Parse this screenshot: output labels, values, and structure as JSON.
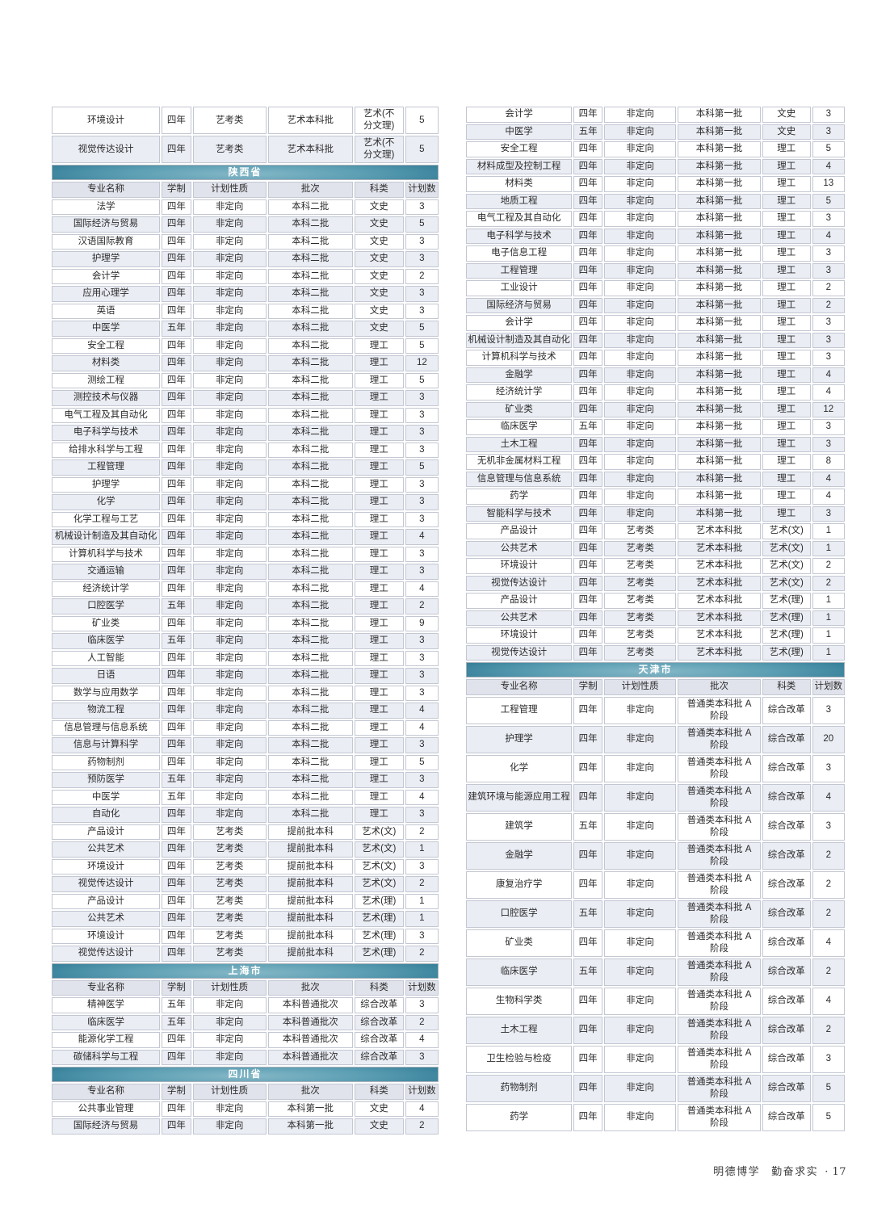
{
  "page": {
    "footer": {
      "motto_left": "明德博学",
      "motto_right": "勤奋求实",
      "page_number": "· 17"
    }
  },
  "colors": {
    "band_dark": "#216e8a",
    "band_mid": "#5a9db2",
    "band_light": "#85b8c7",
    "band_text": "#ffffff",
    "stripe_row": "#eaedf4",
    "header_row": "#e0e3eb",
    "cell_border": "#c3c7d2",
    "text": "#2b2b2b"
  },
  "table_headers": [
    "专业名称",
    "学制",
    "计划性质",
    "批次",
    "科类",
    "计划数"
  ],
  "columns": {
    "left": [
      {
        "section": null,
        "with_header": false,
        "rows": [
          [
            "环境设计",
            "四年",
            "艺考类",
            "艺术本科批",
            "艺术(不\n分文理)",
            "5"
          ],
          [
            "视觉传达设计",
            "四年",
            "艺考类",
            "艺术本科批",
            "艺术(不\n分文理)",
            "5"
          ]
        ]
      },
      {
        "section": "陕西省",
        "with_header": true,
        "rows": [
          [
            "法学",
            "四年",
            "非定向",
            "本科二批",
            "文史",
            "3"
          ],
          [
            "国际经济与贸易",
            "四年",
            "非定向",
            "本科二批",
            "文史",
            "5"
          ],
          [
            "汉语国际教育",
            "四年",
            "非定向",
            "本科二批",
            "文史",
            "3"
          ],
          [
            "护理学",
            "四年",
            "非定向",
            "本科二批",
            "文史",
            "3"
          ],
          [
            "会计学",
            "四年",
            "非定向",
            "本科二批",
            "文史",
            "2"
          ],
          [
            "应用心理学",
            "四年",
            "非定向",
            "本科二批",
            "文史",
            "3"
          ],
          [
            "英语",
            "四年",
            "非定向",
            "本科二批",
            "文史",
            "3"
          ],
          [
            "中医学",
            "五年",
            "非定向",
            "本科二批",
            "文史",
            "5"
          ],
          [
            "安全工程",
            "四年",
            "非定向",
            "本科二批",
            "理工",
            "5"
          ],
          [
            "材料类",
            "四年",
            "非定向",
            "本科二批",
            "理工",
            "12"
          ],
          [
            "测绘工程",
            "四年",
            "非定向",
            "本科二批",
            "理工",
            "5"
          ],
          [
            "测控技术与仪器",
            "四年",
            "非定向",
            "本科二批",
            "理工",
            "3"
          ],
          [
            "电气工程及其自动化",
            "四年",
            "非定向",
            "本科二批",
            "理工",
            "3"
          ],
          [
            "电子科学与技术",
            "四年",
            "非定向",
            "本科二批",
            "理工",
            "3"
          ],
          [
            "给排水科学与工程",
            "四年",
            "非定向",
            "本科二批",
            "理工",
            "3"
          ],
          [
            "工程管理",
            "四年",
            "非定向",
            "本科二批",
            "理工",
            "5"
          ],
          [
            "护理学",
            "四年",
            "非定向",
            "本科二批",
            "理工",
            "3"
          ],
          [
            "化学",
            "四年",
            "非定向",
            "本科二批",
            "理工",
            "3"
          ],
          [
            "化学工程与工艺",
            "四年",
            "非定向",
            "本科二批",
            "理工",
            "3"
          ],
          [
            "机械设计制造及其自动化",
            "四年",
            "非定向",
            "本科二批",
            "理工",
            "4"
          ],
          [
            "计算机科学与技术",
            "四年",
            "非定向",
            "本科二批",
            "理工",
            "3"
          ],
          [
            "交通运输",
            "四年",
            "非定向",
            "本科二批",
            "理工",
            "3"
          ],
          [
            "经济统计学",
            "四年",
            "非定向",
            "本科二批",
            "理工",
            "4"
          ],
          [
            "口腔医学",
            "五年",
            "非定向",
            "本科二批",
            "理工",
            "2"
          ],
          [
            "矿业类",
            "四年",
            "非定向",
            "本科二批",
            "理工",
            "9"
          ],
          [
            "临床医学",
            "五年",
            "非定向",
            "本科二批",
            "理工",
            "3"
          ],
          [
            "人工智能",
            "四年",
            "非定向",
            "本科二批",
            "理工",
            "3"
          ],
          [
            "日语",
            "四年",
            "非定向",
            "本科二批",
            "理工",
            "3"
          ],
          [
            "数学与应用数学",
            "四年",
            "非定向",
            "本科二批",
            "理工",
            "3"
          ],
          [
            "物流工程",
            "四年",
            "非定向",
            "本科二批",
            "理工",
            "4"
          ],
          [
            "信息管理与信息系统",
            "四年",
            "非定向",
            "本科二批",
            "理工",
            "4"
          ],
          [
            "信息与计算科学",
            "四年",
            "非定向",
            "本科二批",
            "理工",
            "3"
          ],
          [
            "药物制剂",
            "四年",
            "非定向",
            "本科二批",
            "理工",
            "5"
          ],
          [
            "预防医学",
            "五年",
            "非定向",
            "本科二批",
            "理工",
            "3"
          ],
          [
            "中医学",
            "五年",
            "非定向",
            "本科二批",
            "理工",
            "4"
          ],
          [
            "自动化",
            "四年",
            "非定向",
            "本科二批",
            "理工",
            "3"
          ],
          [
            "产品设计",
            "四年",
            "艺考类",
            "提前批本科",
            "艺术(文)",
            "2"
          ],
          [
            "公共艺术",
            "四年",
            "艺考类",
            "提前批本科",
            "艺术(文)",
            "1"
          ],
          [
            "环境设计",
            "四年",
            "艺考类",
            "提前批本科",
            "艺术(文)",
            "3"
          ],
          [
            "视觉传达设计",
            "四年",
            "艺考类",
            "提前批本科",
            "艺术(文)",
            "2"
          ],
          [
            "产品设计",
            "四年",
            "艺考类",
            "提前批本科",
            "艺术(理)",
            "1"
          ],
          [
            "公共艺术",
            "四年",
            "艺考类",
            "提前批本科",
            "艺术(理)",
            "1"
          ],
          [
            "环境设计",
            "四年",
            "艺考类",
            "提前批本科",
            "艺术(理)",
            "3"
          ],
          [
            "视觉传达设计",
            "四年",
            "艺考类",
            "提前批本科",
            "艺术(理)",
            "2"
          ]
        ]
      },
      {
        "section": "上海市",
        "with_header": true,
        "rows": [
          [
            "精神医学",
            "五年",
            "非定向",
            "本科普通批次",
            "综合改革",
            "3"
          ],
          [
            "临床医学",
            "五年",
            "非定向",
            "本科普通批次",
            "综合改革",
            "2"
          ],
          [
            "能源化学工程",
            "四年",
            "非定向",
            "本科普通批次",
            "综合改革",
            "4"
          ],
          [
            "碳储科学与工程",
            "四年",
            "非定向",
            "本科普通批次",
            "综合改革",
            "3"
          ]
        ]
      },
      {
        "section": "四川省",
        "with_header": true,
        "rows": [
          [
            "公共事业管理",
            "四年",
            "非定向",
            "本科第一批",
            "文史",
            "4"
          ],
          [
            "国际经济与贸易",
            "四年",
            "非定向",
            "本科第一批",
            "文史",
            "2"
          ]
        ]
      }
    ],
    "right": [
      {
        "section": null,
        "with_header": false,
        "rows": [
          [
            "会计学",
            "四年",
            "非定向",
            "本科第一批",
            "文史",
            "3"
          ],
          [
            "中医学",
            "五年",
            "非定向",
            "本科第一批",
            "文史",
            "3"
          ],
          [
            "安全工程",
            "四年",
            "非定向",
            "本科第一批",
            "理工",
            "5"
          ],
          [
            "材料成型及控制工程",
            "四年",
            "非定向",
            "本科第一批",
            "理工",
            "4"
          ],
          [
            "材料类",
            "四年",
            "非定向",
            "本科第一批",
            "理工",
            "13"
          ],
          [
            "地质工程",
            "四年",
            "非定向",
            "本科第一批",
            "理工",
            "5"
          ],
          [
            "电气工程及其自动化",
            "四年",
            "非定向",
            "本科第一批",
            "理工",
            "3"
          ],
          [
            "电子科学与技术",
            "四年",
            "非定向",
            "本科第一批",
            "理工",
            "4"
          ],
          [
            "电子信息工程",
            "四年",
            "非定向",
            "本科第一批",
            "理工",
            "3"
          ],
          [
            "工程管理",
            "四年",
            "非定向",
            "本科第一批",
            "理工",
            "3"
          ],
          [
            "工业设计",
            "四年",
            "非定向",
            "本科第一批",
            "理工",
            "2"
          ],
          [
            "国际经济与贸易",
            "四年",
            "非定向",
            "本科第一批",
            "理工",
            "2"
          ],
          [
            "会计学",
            "四年",
            "非定向",
            "本科第一批",
            "理工",
            "3"
          ],
          [
            "机械设计制造及其自动化",
            "四年",
            "非定向",
            "本科第一批",
            "理工",
            "3"
          ],
          [
            "计算机科学与技术",
            "四年",
            "非定向",
            "本科第一批",
            "理工",
            "3"
          ],
          [
            "金融学",
            "四年",
            "非定向",
            "本科第一批",
            "理工",
            "4"
          ],
          [
            "经济统计学",
            "四年",
            "非定向",
            "本科第一批",
            "理工",
            "4"
          ],
          [
            "矿业类",
            "四年",
            "非定向",
            "本科第一批",
            "理工",
            "12"
          ],
          [
            "临床医学",
            "五年",
            "非定向",
            "本科第一批",
            "理工",
            "3"
          ],
          [
            "土木工程",
            "四年",
            "非定向",
            "本科第一批",
            "理工",
            "3"
          ],
          [
            "无机非金属材料工程",
            "四年",
            "非定向",
            "本科第一批",
            "理工",
            "8"
          ],
          [
            "信息管理与信息系统",
            "四年",
            "非定向",
            "本科第一批",
            "理工",
            "4"
          ],
          [
            "药学",
            "四年",
            "非定向",
            "本科第一批",
            "理工",
            "4"
          ],
          [
            "智能科学与技术",
            "四年",
            "非定向",
            "本科第一批",
            "理工",
            "3"
          ],
          [
            "产品设计",
            "四年",
            "艺考类",
            "艺术本科批",
            "艺术(文)",
            "1"
          ],
          [
            "公共艺术",
            "四年",
            "艺考类",
            "艺术本科批",
            "艺术(文)",
            "1"
          ],
          [
            "环境设计",
            "四年",
            "艺考类",
            "艺术本科批",
            "艺术(文)",
            "2"
          ],
          [
            "视觉传达设计",
            "四年",
            "艺考类",
            "艺术本科批",
            "艺术(文)",
            "2"
          ],
          [
            "产品设计",
            "四年",
            "艺考类",
            "艺术本科批",
            "艺术(理)",
            "1"
          ],
          [
            "公共艺术",
            "四年",
            "艺考类",
            "艺术本科批",
            "艺术(理)",
            "1"
          ],
          [
            "环境设计",
            "四年",
            "艺考类",
            "艺术本科批",
            "艺术(理)",
            "1"
          ],
          [
            "视觉传达设计",
            "四年",
            "艺考类",
            "艺术本科批",
            "艺术(理)",
            "1"
          ]
        ]
      },
      {
        "section": "天津市",
        "with_header": true,
        "rows": [
          [
            "工程管理",
            "四年",
            "非定向",
            "普通类本科批 A\n阶段",
            "综合改革",
            "3"
          ],
          [
            "护理学",
            "四年",
            "非定向",
            "普通类本科批 A\n阶段",
            "综合改革",
            "20"
          ],
          [
            "化学",
            "四年",
            "非定向",
            "普通类本科批 A\n阶段",
            "综合改革",
            "3"
          ],
          [
            "建筑环境与能源应用工程",
            "四年",
            "非定向",
            "普通类本科批 A\n阶段",
            "综合改革",
            "4"
          ],
          [
            "建筑学",
            "五年",
            "非定向",
            "普通类本科批 A\n阶段",
            "综合改革",
            "3"
          ],
          [
            "金融学",
            "四年",
            "非定向",
            "普通类本科批 A\n阶段",
            "综合改革",
            "2"
          ],
          [
            "康复治疗学",
            "四年",
            "非定向",
            "普通类本科批 A\n阶段",
            "综合改革",
            "2"
          ],
          [
            "口腔医学",
            "五年",
            "非定向",
            "普通类本科批 A\n阶段",
            "综合改革",
            "2"
          ],
          [
            "矿业类",
            "四年",
            "非定向",
            "普通类本科批 A\n阶段",
            "综合改革",
            "4"
          ],
          [
            "临床医学",
            "五年",
            "非定向",
            "普通类本科批 A\n阶段",
            "综合改革",
            "2"
          ],
          [
            "生物科学类",
            "四年",
            "非定向",
            "普通类本科批 A\n阶段",
            "综合改革",
            "4"
          ],
          [
            "土木工程",
            "四年",
            "非定向",
            "普通类本科批 A\n阶段",
            "综合改革",
            "2"
          ],
          [
            "卫生检验与检疫",
            "四年",
            "非定向",
            "普通类本科批 A\n阶段",
            "综合改革",
            "3"
          ],
          [
            "药物制剂",
            "四年",
            "非定向",
            "普通类本科批 A\n阶段",
            "综合改革",
            "5"
          ],
          [
            "药学",
            "四年",
            "非定向",
            "普通类本科批 A\n阶段",
            "综合改革",
            "5"
          ]
        ]
      }
    ]
  }
}
